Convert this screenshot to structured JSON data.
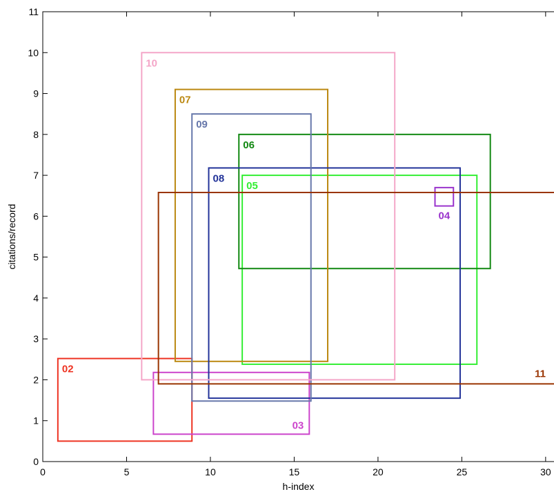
{
  "chart_data": {
    "type": "rectangle-plot",
    "xlabel": "h-index",
    "ylabel": "citations/record",
    "xlim": [
      0,
      30.5
    ],
    "ylim": [
      0,
      11
    ],
    "x_ticks": [
      0,
      5,
      10,
      15,
      20,
      25,
      30
    ],
    "y_ticks": [
      0,
      1,
      2,
      3,
      4,
      5,
      6,
      7,
      8,
      9,
      10,
      11
    ],
    "grid": false,
    "rectangles": [
      {
        "label": "02",
        "x_min": 0.9,
        "x_max": 8.9,
        "y_min": 0.5,
        "y_max": 2.52,
        "color": "#ee3322",
        "label_anchor": "top-left"
      },
      {
        "label": "03",
        "x_min": 6.6,
        "x_max": 15.9,
        "y_min": 0.67,
        "y_max": 2.18,
        "color": "#cc44cc",
        "label_anchor": "bottom-right"
      },
      {
        "label": "04",
        "x_min": 23.4,
        "x_max": 24.5,
        "y_min": 6.25,
        "y_max": 6.7,
        "color": "#9933cc",
        "label_anchor": "below"
      },
      {
        "label": "05",
        "x_min": 11.9,
        "x_max": 25.9,
        "y_min": 2.38,
        "y_max": 7.0,
        "color": "#33ee33",
        "label_anchor": "top-left"
      },
      {
        "label": "06",
        "x_min": 11.7,
        "x_max": 26.7,
        "y_min": 4.72,
        "y_max": 8.0,
        "color": "#118811",
        "label_anchor": "top-left"
      },
      {
        "label": "07",
        "x_min": 7.9,
        "x_max": 17.0,
        "y_min": 2.45,
        "y_max": 9.1,
        "color": "#bb8811",
        "label_anchor": "top-left"
      },
      {
        "label": "08",
        "x_min": 9.9,
        "x_max": 24.9,
        "y_min": 1.55,
        "y_max": 7.18,
        "color": "#223399",
        "label_anchor": "top-left"
      },
      {
        "label": "09",
        "x_min": 8.9,
        "x_max": 16.0,
        "y_min": 1.48,
        "y_max": 8.5,
        "color": "#6677aa",
        "label_anchor": "top-left"
      },
      {
        "label": "10",
        "x_min": 5.9,
        "x_max": 21.0,
        "y_min": 2.0,
        "y_max": 10.0,
        "color": "#f4a6c8",
        "label_anchor": "top-left"
      },
      {
        "label": "11",
        "x_min": 6.9,
        "x_max": 31.5,
        "y_min": 1.9,
        "y_max": 6.58,
        "color": "#993300",
        "label_anchor": "bottom-right"
      }
    ]
  }
}
